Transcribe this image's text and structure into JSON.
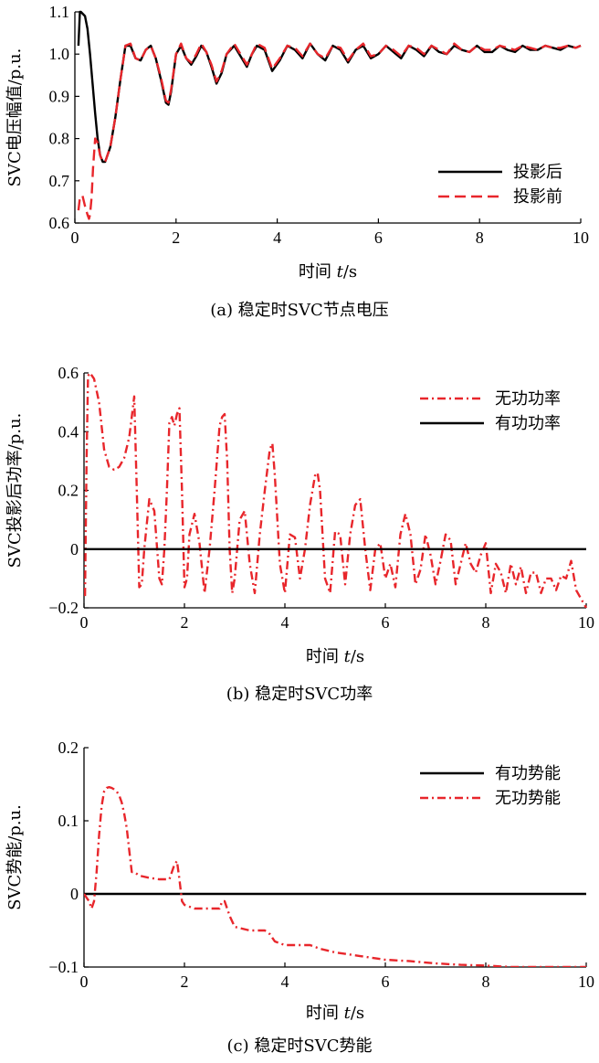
{
  "colors": {
    "black": "#000000",
    "red": "#e8262b"
  },
  "chart_data": [
    {
      "type": "line",
      "caption": "(a) 稳定时SVC节点电压",
      "xlabel_prefix": "时间 ",
      "xlabel_var": "t",
      "xlabel_unit": "/s",
      "ylabel": "SVC电压幅值/p.u.",
      "xlim": [
        0,
        10
      ],
      "ylim": [
        0.6,
        1.1
      ],
      "xticks": [
        0,
        2,
        4,
        6,
        8,
        10
      ],
      "yticks": [
        0.6,
        0.7,
        0.8,
        0.9,
        1.0,
        1.1
      ],
      "ytick_labels": [
        "0.6",
        "0.7",
        "0.8",
        "0.9",
        "1.0",
        "1.1"
      ],
      "legend_position": "bottom-right",
      "series": [
        {
          "name": "投影后",
          "style": "solid",
          "color": "#000000",
          "x": [
            0.07,
            0.1,
            0.12,
            0.2,
            0.25,
            0.3,
            0.35,
            0.4,
            0.45,
            0.5,
            0.55,
            0.6,
            0.7,
            0.8,
            0.9,
            1.0,
            1.1,
            1.2,
            1.3,
            1.4,
            1.5,
            1.6,
            1.7,
            1.8,
            1.85,
            1.9,
            2.0,
            2.1,
            2.2,
            2.3,
            2.4,
            2.5,
            2.6,
            2.7,
            2.8,
            2.9,
            3.0,
            3.15,
            3.3,
            3.4,
            3.5,
            3.6,
            3.75,
            3.9,
            4.05,
            4.2,
            4.35,
            4.5,
            4.65,
            4.8,
            4.95,
            5.1,
            5.25,
            5.4,
            5.55,
            5.7,
            5.85,
            6.0,
            6.15,
            6.3,
            6.45,
            6.6,
            6.75,
            6.9,
            7.05,
            7.2,
            7.35,
            7.5,
            7.65,
            7.8,
            7.95,
            8.1,
            8.25,
            8.4,
            8.55,
            8.7,
            8.85,
            9.0,
            9.15,
            9.3,
            9.45,
            9.6,
            9.75,
            9.9,
            10.0
          ],
          "y": [
            1.02,
            1.1,
            1.1,
            1.09,
            1.06,
            1.0,
            0.93,
            0.86,
            0.8,
            0.76,
            0.745,
            0.745,
            0.78,
            0.85,
            0.94,
            1.02,
            1.02,
            0.99,
            0.985,
            1.01,
            1.02,
            0.99,
            0.94,
            0.885,
            0.88,
            0.91,
            1.0,
            1.02,
            0.99,
            0.975,
            0.995,
            1.02,
            1.005,
            0.97,
            0.93,
            0.955,
            1.0,
            1.02,
            0.99,
            0.97,
            1.0,
            1.02,
            1.01,
            0.96,
            0.985,
            1.02,
            1.01,
            0.99,
            1.025,
            1.0,
            0.985,
            1.02,
            1.01,
            0.98,
            1.01,
            1.02,
            0.99,
            1.0,
            1.02,
            1.005,
            0.99,
            1.02,
            1.01,
            0.995,
            1.02,
            1.005,
            1.0,
            1.02,
            1.01,
            1.005,
            1.02,
            1.005,
            1.005,
            1.02,
            1.01,
            1.005,
            1.02,
            1.01,
            1.01,
            1.02,
            1.015,
            1.01,
            1.02,
            1.015,
            1.02
          ]
        },
        {
          "name": "投影前",
          "style": "dashed",
          "color": "#e8262b",
          "x": [
            0.07,
            0.1,
            0.15,
            0.2,
            0.25,
            0.28,
            0.3,
            0.33,
            0.36,
            0.4,
            0.45,
            0.5,
            0.55,
            0.6,
            0.7,
            0.8,
            0.9,
            1.0,
            1.1,
            1.2,
            1.3,
            1.4,
            1.5,
            1.6,
            1.7,
            1.8,
            1.85,
            1.9,
            2.0,
            2.1,
            2.2,
            2.3,
            2.4,
            2.5,
            2.6,
            2.7,
            2.8,
            2.9,
            3.0,
            3.15,
            3.3,
            3.4,
            3.5,
            3.6,
            3.75,
            3.9,
            4.05,
            4.2,
            4.35,
            4.5,
            4.65,
            4.8,
            4.95,
            5.1,
            5.25,
            5.4,
            5.55,
            5.7,
            5.85,
            6.0,
            6.15,
            6.3,
            6.45,
            6.6,
            6.75,
            6.9,
            7.05,
            7.2,
            7.35,
            7.5,
            7.65,
            7.8,
            7.95,
            8.1,
            8.25,
            8.4,
            8.55,
            8.7,
            8.85,
            9.0,
            9.15,
            9.3,
            9.45,
            9.6,
            9.75,
            9.9,
            10.0
          ],
          "y": [
            0.63,
            0.66,
            0.665,
            0.64,
            0.62,
            0.61,
            0.62,
            0.66,
            0.73,
            0.8,
            0.79,
            0.76,
            0.745,
            0.745,
            0.78,
            0.85,
            0.94,
            1.02,
            1.025,
            0.99,
            0.985,
            1.01,
            1.02,
            0.99,
            0.945,
            0.89,
            0.885,
            0.915,
            1.0,
            1.025,
            0.99,
            0.98,
            1.0,
            1.025,
            1.005,
            0.975,
            0.935,
            0.96,
            1.0,
            1.025,
            0.995,
            0.975,
            1.0,
            1.025,
            1.015,
            0.965,
            0.99,
            1.02,
            1.015,
            0.995,
            1.025,
            1.0,
            0.99,
            1.02,
            1.015,
            0.985,
            1.01,
            1.025,
            0.995,
            1.0,
            1.02,
            1.01,
            0.995,
            1.02,
            1.015,
            1.0,
            1.02,
            1.01,
            1.0,
            1.025,
            1.01,
            1.005,
            1.02,
            1.01,
            1.01,
            1.02,
            1.015,
            1.01,
            1.02,
            1.015,
            1.01,
            1.02,
            1.015,
            1.015,
            1.02,
            1.015,
            1.02
          ]
        }
      ]
    },
    {
      "type": "line",
      "caption": "(b) 稳定时SVC功率",
      "xlabel_prefix": "时间 ",
      "xlabel_var": "t",
      "xlabel_unit": "/s",
      "ylabel": "SVC投影后功率/p.u.",
      "xlim": [
        0,
        10
      ],
      "ylim": [
        -0.2,
        0.6
      ],
      "xticks": [
        0,
        2,
        4,
        6,
        8,
        10
      ],
      "yticks": [
        -0.2,
        0,
        0.2,
        0.4,
        0.6
      ],
      "ytick_labels": [
        "−0.2",
        "0",
        "0.2",
        "0.4",
        "0.6"
      ],
      "legend_position": "top-right",
      "series": [
        {
          "name": "无功功率",
          "style": "dashdot",
          "color": "#e8262b",
          "x": [
            0.02,
            0.05,
            0.08,
            0.12,
            0.2,
            0.3,
            0.4,
            0.5,
            0.6,
            0.7,
            0.8,
            0.9,
            0.95,
            1.0,
            1.05,
            1.1,
            1.15,
            1.2,
            1.3,
            1.4,
            1.5,
            1.55,
            1.6,
            1.65,
            1.7,
            1.75,
            1.8,
            1.85,
            1.9,
            1.95,
            2.0,
            2.05,
            2.1,
            2.2,
            2.3,
            2.4,
            2.5,
            2.6,
            2.7,
            2.75,
            2.8,
            2.85,
            2.9,
            2.95,
            3.0,
            3.1,
            3.2,
            3.3,
            3.4,
            3.5,
            3.6,
            3.7,
            3.75,
            3.8,
            3.9,
            4.0,
            4.1,
            4.2,
            4.3,
            4.4,
            4.5,
            4.6,
            4.65,
            4.7,
            4.8,
            4.9,
            5.0,
            5.1,
            5.2,
            5.3,
            5.4,
            5.5,
            5.6,
            5.7,
            5.8,
            5.9,
            6.0,
            6.1,
            6.2,
            6.3,
            6.4,
            6.5,
            6.6,
            6.7,
            6.8,
            6.9,
            7.0,
            7.1,
            7.2,
            7.3,
            7.4,
            7.5,
            7.6,
            7.7,
            7.8,
            7.9,
            8.0,
            8.1,
            8.2,
            8.3,
            8.4,
            8.5,
            8.6,
            8.7,
            8.8,
            8.9,
            9.0,
            9.1,
            9.2,
            9.3,
            9.4,
            9.5,
            9.6,
            9.7,
            9.8,
            9.9,
            10.0
          ],
          "y": [
            -0.16,
            0.3,
            0.59,
            0.6,
            0.58,
            0.5,
            0.34,
            0.28,
            0.27,
            0.28,
            0.31,
            0.38,
            0.45,
            0.52,
            0.2,
            -0.13,
            -0.12,
            0.0,
            0.17,
            0.13,
            -0.1,
            -0.12,
            0.0,
            0.2,
            0.43,
            0.45,
            0.42,
            0.46,
            0.48,
            0.2,
            -0.13,
            -0.1,
            0.05,
            0.12,
            0.02,
            -0.15,
            0.0,
            0.2,
            0.42,
            0.45,
            0.46,
            0.3,
            0.0,
            -0.15,
            -0.1,
            0.1,
            0.13,
            -0.05,
            -0.15,
            0.05,
            0.2,
            0.34,
            0.36,
            0.25,
            -0.05,
            -0.15,
            0.05,
            0.04,
            -0.1,
            0.0,
            0.15,
            0.25,
            0.26,
            0.2,
            -0.1,
            -0.15,
            0.06,
            0.05,
            -0.12,
            0.05,
            0.15,
            0.17,
            0.0,
            -0.14,
            0.0,
            0.02,
            -0.1,
            -0.05,
            -0.13,
            0.05,
            0.12,
            0.05,
            -0.12,
            -0.07,
            0.05,
            -0.02,
            -0.12,
            -0.04,
            0.05,
            0.03,
            -0.12,
            -0.05,
            0.02,
            -0.05,
            -0.08,
            -0.02,
            0.02,
            -0.15,
            -0.05,
            -0.08,
            -0.15,
            -0.05,
            -0.12,
            -0.06,
            -0.15,
            -0.08,
            -0.08,
            -0.15,
            -0.1,
            -0.1,
            -0.14,
            -0.09,
            -0.1,
            -0.04,
            -0.14,
            -0.17,
            -0.2
          ],
          "dashdot": true
        },
        {
          "name": "有功功率",
          "style": "solid",
          "color": "#000000",
          "x": [
            0,
            10
          ],
          "y": [
            0,
            0
          ]
        }
      ]
    },
    {
      "type": "line",
      "caption": "(c) 稳定时SVC势能",
      "xlabel_prefix": "时间 ",
      "xlabel_var": "t",
      "xlabel_unit": "/s",
      "ylabel": "SVC势能/p.u.",
      "xlim": [
        0,
        10
      ],
      "ylim": [
        -0.1,
        0.2
      ],
      "xticks": [
        0,
        2,
        4,
        6,
        8,
        10
      ],
      "yticks": [
        -0.1,
        0,
        0.1,
        0.2
      ],
      "ytick_labels": [
        "−0.1",
        "0",
        "0.1",
        "0.2"
      ],
      "legend_position": "top-right",
      "series": [
        {
          "name": "有功势能",
          "style": "solid",
          "color": "#000000",
          "x": [
            0,
            10
          ],
          "y": [
            0,
            0
          ]
        },
        {
          "name": "无功势能",
          "style": "dashdot",
          "color": "#e8262b",
          "x": [
            0.0,
            0.1,
            0.15,
            0.2,
            0.25,
            0.3,
            0.35,
            0.4,
            0.45,
            0.5,
            0.55,
            0.6,
            0.65,
            0.7,
            0.75,
            0.8,
            0.85,
            0.9,
            0.95,
            1.0,
            1.1,
            1.3,
            1.5,
            1.7,
            1.8,
            1.85,
            1.9,
            1.95,
            2.0,
            2.2,
            2.5,
            2.7,
            2.75,
            2.8,
            2.9,
            3.0,
            3.3,
            3.6,
            3.7,
            3.8,
            4.0,
            4.5,
            4.7,
            5.0,
            5.5,
            6.0,
            6.5,
            7.0,
            7.5,
            8.0,
            8.5,
            9.0,
            9.5,
            10.0
          ],
          "y": [
            0.0,
            -0.01,
            -0.02,
            -0.01,
            0.03,
            0.08,
            0.12,
            0.14,
            0.145,
            0.146,
            0.145,
            0.143,
            0.14,
            0.135,
            0.125,
            0.11,
            0.09,
            0.06,
            0.03,
            0.03,
            0.025,
            0.022,
            0.02,
            0.02,
            0.04,
            0.045,
            0.02,
            -0.01,
            -0.015,
            -0.02,
            -0.02,
            -0.02,
            -0.01,
            -0.01,
            -0.03,
            -0.045,
            -0.05,
            -0.05,
            -0.055,
            -0.065,
            -0.07,
            -0.07,
            -0.075,
            -0.08,
            -0.085,
            -0.09,
            -0.092,
            -0.095,
            -0.097,
            -0.098,
            -0.1,
            -0.1,
            -0.1,
            -0.1
          ]
        }
      ]
    }
  ]
}
